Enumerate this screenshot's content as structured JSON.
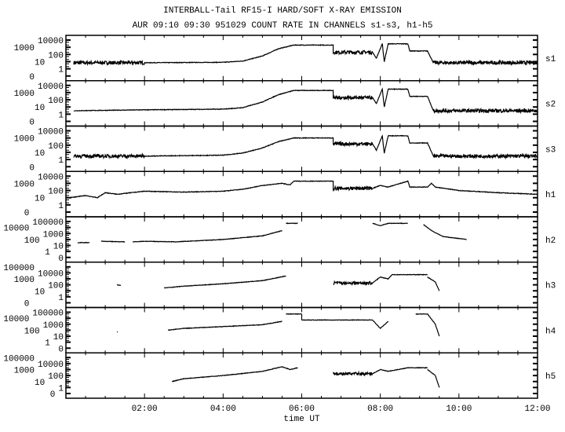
{
  "chart_data": {
    "type": "line",
    "title": "INTERBALL-Tail RF15-I HARD/SOFT X-RAY EMISSION",
    "subtitle": "AUR 09:10 09:30 951029  COUNT RATE IN CHANNELS s1-s3, h1-h5",
    "xlabel": "time UT",
    "xlim": [
      0,
      12
    ],
    "x_ticks": [
      "02:00",
      "04:00",
      "06:00",
      "08:00",
      "10:00",
      "12:00"
    ],
    "x_tick_hours": [
      2,
      4,
      6,
      8,
      10,
      12
    ],
    "y_scale": "log",
    "grid": false,
    "line_color": "#000000",
    "panels": [
      {
        "name": "s1",
        "yticks": [
          "10000",
          "1000",
          "100",
          "10",
          "1",
          "0"
        ],
        "segments": [
          [
            [
              0.2,
              7
            ],
            [
              2,
              7
            ],
            [
              4,
              8
            ],
            [
              4.5,
              12
            ],
            [
              5.0,
              60
            ],
            [
              5.4,
              600
            ],
            [
              5.8,
              2000
            ],
            [
              6.8,
              2000
            ],
            [
              6.8,
              200
            ],
            [
              7.8,
              200
            ],
            [
              7.9,
              30
            ],
            [
              8.05,
              3000
            ],
            [
              8.1,
              10
            ],
            [
              8.2,
              3000
            ],
            [
              8.7,
              3000
            ],
            [
              8.75,
              300
            ],
            [
              9.2,
              300
            ],
            [
              9.35,
              7
            ],
            [
              12,
              7
            ]
          ]
        ]
      },
      {
        "name": "s2",
        "yticks": [
          "10000",
          "1000",
          "100",
          "10",
          "1",
          "0"
        ],
        "segments": [
          [
            [
              0.2,
              3
            ],
            [
              2,
              4
            ],
            [
              4,
              5
            ],
            [
              4.5,
              8
            ],
            [
              5.0,
              50
            ],
            [
              5.4,
              500
            ],
            [
              5.8,
              2000
            ],
            [
              6.8,
              2000
            ],
            [
              6.8,
              200
            ],
            [
              7.8,
              200
            ],
            [
              7.9,
              30
            ],
            [
              8.05,
              3000
            ],
            [
              8.1,
              10
            ],
            [
              8.2,
              3000
            ],
            [
              8.7,
              3000
            ],
            [
              8.75,
              300
            ],
            [
              9.2,
              300
            ],
            [
              9.35,
              3
            ],
            [
              12,
              3
            ]
          ]
        ]
      },
      {
        "name": "s3",
        "yticks": [
          "10000",
          "1000",
          "100",
          "10",
          "1",
          "0"
        ],
        "segments": [
          [
            [
              0.2,
              3
            ],
            [
              2,
              3
            ],
            [
              4,
              4
            ],
            [
              4.5,
              8
            ],
            [
              5.0,
              40
            ],
            [
              5.4,
              300
            ],
            [
              5.8,
              1000
            ],
            [
              6.8,
              1000
            ],
            [
              6.8,
              150
            ],
            [
              7.8,
              150
            ],
            [
              7.9,
              20
            ],
            [
              8.05,
              2000
            ],
            [
              8.1,
              8
            ],
            [
              8.2,
              2000
            ],
            [
              8.7,
              2000
            ],
            [
              8.75,
              200
            ],
            [
              9.2,
              200
            ],
            [
              9.35,
              3
            ],
            [
              12,
              3
            ]
          ]
        ]
      },
      {
        "name": "h1",
        "yticks": [
          "10000",
          "1000",
          "100",
          "10",
          "1",
          "0"
        ],
        "segments": [
          [
            [
              0.1,
              10
            ],
            [
              0.5,
              20
            ],
            [
              0.8,
              10
            ],
            [
              1.0,
              50
            ],
            [
              1.3,
              30
            ],
            [
              2.0,
              80
            ],
            [
              3.0,
              60
            ],
            [
              4.0,
              80
            ],
            [
              4.5,
              150
            ],
            [
              5.0,
              500
            ],
            [
              5.5,
              1000
            ],
            [
              5.7,
              600
            ],
            [
              5.8,
              2000
            ],
            [
              6.8,
              2000
            ],
            [
              6.8,
              200
            ],
            [
              7.8,
              200
            ],
            [
              8.0,
              500
            ],
            [
              8.2,
              300
            ],
            [
              8.7,
              2000
            ],
            [
              8.75,
              300
            ],
            [
              9.2,
              300
            ],
            [
              9.3,
              1000
            ],
            [
              9.4,
              300
            ],
            [
              10,
              100
            ],
            [
              11,
              50
            ],
            [
              12,
              30
            ]
          ]
        ]
      },
      {
        "name": "h2",
        "yticks": [
          "100000",
          "10000",
          "1000",
          "100",
          "10",
          "1",
          "0"
        ],
        "segments": [
          [
            [
              0.3,
              30
            ],
            [
              0.6,
              30
            ]
          ],
          [
            [
              0.9,
              50
            ],
            [
              1.5,
              40
            ]
          ],
          [
            [
              1.7,
              40
            ],
            [
              2.0,
              50
            ],
            [
              2.8,
              40
            ],
            [
              4.0,
              100
            ],
            [
              5.0,
              400
            ],
            [
              5.5,
              3000
            ]
          ],
          [
            [
              5.6,
              50000
            ],
            [
              5.9,
              50000
            ]
          ],
          [
            [
              7.8,
              50000
            ],
            [
              8.0,
              20000
            ],
            [
              8.2,
              50000
            ],
            [
              8.7,
              50000
            ]
          ],
          [
            [
              9.1,
              30000
            ],
            [
              9.3,
              3000
            ],
            [
              9.6,
              300
            ],
            [
              10.2,
              100
            ]
          ]
        ]
      },
      {
        "name": "h3",
        "yticks": [
          "100000",
          "10000",
          "1000",
          "100",
          "10",
          "1",
          "0"
        ],
        "segments": [
          [
            [
              1.3,
              100
            ],
            [
              1.4,
              80
            ]
          ],
          [
            [
              2.5,
              30
            ],
            [
              3.0,
              60
            ],
            [
              4.0,
              150
            ],
            [
              5.0,
              500
            ],
            [
              5.6,
              3000
            ]
          ],
          [
            [
              6.8,
              200
            ],
            [
              7.8,
              200
            ],
            [
              8.0,
              2000
            ],
            [
              8.2,
              1000
            ],
            [
              8.3,
              5000
            ],
            [
              9.2,
              5000
            ]
          ],
          [
            [
              9.2,
              2000
            ],
            [
              9.4,
              300
            ],
            [
              9.5,
              10
            ]
          ]
        ]
      },
      {
        "name": "h4",
        "yticks": [
          "100000",
          "10000",
          "1000",
          "100",
          "10",
          "1",
          "0"
        ],
        "segments": [
          [
            [
              1.3,
              50
            ],
            [
              1.32,
              50
            ]
          ],
          [
            [
              2.6,
              100
            ],
            [
              3.0,
              200
            ],
            [
              4.0,
              400
            ],
            [
              5.0,
              800
            ],
            [
              5.5,
              3000
            ]
          ],
          [
            [
              5.6,
              50000
            ],
            [
              6.0,
              50000
            ],
            [
              6.0,
              5000
            ],
            [
              7.8,
              5000
            ],
            [
              8.0,
              200
            ],
            [
              8.2,
              3000
            ]
          ],
          [
            [
              8.9,
              50000
            ],
            [
              9.2,
              50000
            ],
            [
              9.4,
              1000
            ],
            [
              9.5,
              10
            ]
          ]
        ]
      },
      {
        "name": "h5",
        "yticks": [
          "100000",
          "10000",
          "1000",
          "100",
          "10",
          "1",
          "0"
        ],
        "segments": [
          [
            [
              2.7,
              10
            ],
            [
              3.0,
              30
            ],
            [
              4.0,
              100
            ],
            [
              5.0,
              500
            ],
            [
              5.5,
              3000
            ],
            [
              5.7,
              1000
            ],
            [
              5.9,
              2000
            ]
          ],
          [
            [
              6.8,
              200
            ],
            [
              7.8,
              200
            ],
            [
              8.0,
              1000
            ],
            [
              8.2,
              500
            ],
            [
              8.7,
              2000
            ],
            [
              9.2,
              2000
            ]
          ],
          [
            [
              9.2,
              1000
            ],
            [
              9.4,
              100
            ],
            [
              9.5,
              1
            ]
          ]
        ]
      }
    ]
  }
}
